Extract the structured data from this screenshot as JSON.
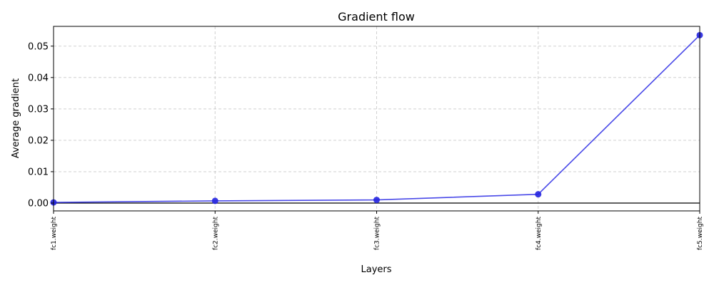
{
  "chart_data": {
    "type": "line",
    "title": "Gradient flow",
    "xlabel": "Layers",
    "ylabel": "Average gradient",
    "categories": [
      "fc1.weight",
      "fc2.weight",
      "fc3.weight",
      "fc4.weight",
      "fc5.weight"
    ],
    "series": [
      {
        "values": [
          0.0002,
          0.0007,
          0.001,
          0.0028,
          0.0535
        ]
      }
    ],
    "ylim": [
      -0.0025,
      0.0563
    ],
    "yticks": [
      0.0,
      0.01,
      0.02,
      0.03,
      0.04,
      0.05
    ],
    "ytick_labels": [
      "0.00",
      "0.01",
      "0.02",
      "0.03",
      "0.04",
      "0.05"
    ],
    "grid": true,
    "zero_line": true,
    "line_color": "#3535e6",
    "marker_color": "#2424e0"
  }
}
